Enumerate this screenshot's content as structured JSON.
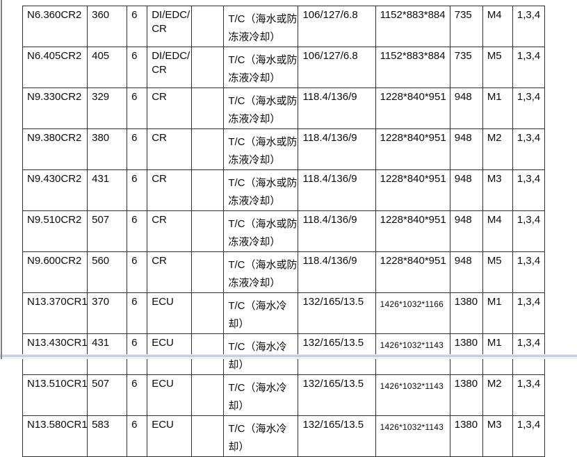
{
  "page": {
    "background": "#ffffff"
  },
  "decorations": {
    "left_edge_color": "#7d828a",
    "bottom_band_color": "#c7d0db",
    "bottom_band_light": "#edf1f6"
  },
  "table": {
    "border_color": "#2f2f2f",
    "text_color": "#0a0a0a",
    "rows": [
      [
        "N6.360CR2",
        "360",
        "6",
        "DI/EDC/\nCR",
        "",
        "T/C（海水或防\n冻液冷却）",
        "106/127/6.8",
        "1152*883*884",
        "735",
        "M4",
        "1,3,4"
      ],
      [
        "N6.405CR2",
        "405",
        "6",
        "DI/EDC/\nCR",
        "",
        "T/C（海水或防\n冻液冷却）",
        "106/127/6.8",
        "1152*883*884",
        "735",
        "M5",
        "1,3,4"
      ],
      [
        "N9.330CR2",
        "329",
        "6",
        "CR",
        "",
        "T/C（海水或防\n冻液冷却）",
        "118.4/136/9",
        "1228*840*951",
        "948",
        "M1",
        "1,3,4"
      ],
      [
        "N9.380CR2",
        "380",
        "6",
        "CR",
        "",
        "T/C（海水或防\n冻液冷却）",
        "118.4/136/9",
        "1228*840*951",
        "948",
        "M2",
        "1,3,4"
      ],
      [
        "N9.430CR2",
        "431",
        "6",
        "CR",
        "",
        "T/C（海水或防\n冻液冷却）",
        "118.4/136/9",
        "1228*840*951",
        "948",
        "M3",
        "1,3,4"
      ],
      [
        "N9.510CR2",
        "507",
        "6",
        "CR",
        "",
        "T/C（海水或防\n冻液冷却）",
        "118.4/136/9",
        "1228*840*951",
        "948",
        "M4",
        "1,3,4"
      ],
      [
        "N9.600CR2",
        "560",
        "6",
        "CR",
        "",
        "T/C（海水或防\n冻液冷却）",
        "118.4/136/9",
        "1228*840*951",
        "948",
        "M5",
        "1,3,4"
      ],
      [
        "N13.370CR1",
        "370",
        "6",
        "ECU",
        "",
        "T/C（海水冷\n却）",
        "132/165/13.5",
        "1426*1032*1166",
        "1380",
        "M1",
        "1,3,4"
      ],
      [
        "N13.430CR1",
        "431",
        "6",
        "ECU",
        "",
        "T/C（海水冷\n却）",
        "132/165/13.5",
        "1426*1032*1143",
        "1380",
        "M1",
        "1,3,4"
      ],
      [
        "N13.510CR1",
        "507",
        "6",
        "ECU",
        "",
        "T/C（海水冷\n却）",
        "132/165/13.5",
        "1426*1032*1143",
        "1380",
        "M2",
        "1,3,4"
      ],
      [
        "N13.580CR1",
        "583",
        "6",
        "ECU",
        "",
        "T/C（海水冷\n却）",
        "132/165/13.5",
        "1426*1032*1143",
        "1380",
        "M3",
        "1,3,4"
      ]
    ]
  }
}
